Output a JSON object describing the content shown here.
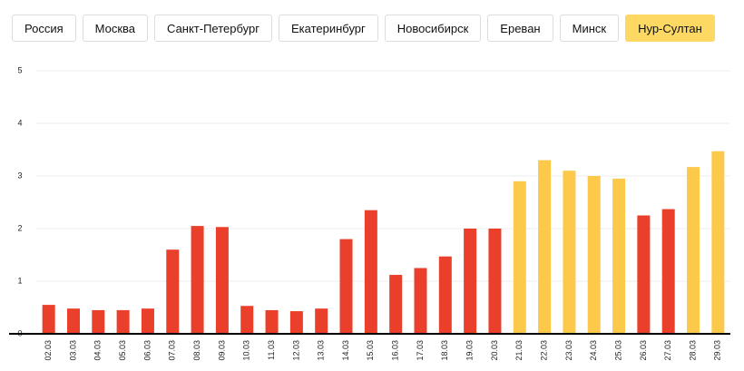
{
  "tabs": [
    "Россия",
    "Москва",
    "Санкт-Петербург",
    "Екатеринбург",
    "Новосибирск",
    "Ереван",
    "Минск",
    "Нур-Султан"
  ],
  "active_tab": 7,
  "chart_data": {
    "type": "bar",
    "categories": [
      "02.03",
      "03.03",
      "04.03",
      "05.03",
      "06.03",
      "07.03",
      "08.03",
      "09.03",
      "10.03",
      "11.03",
      "12.03",
      "13.03",
      "14.03",
      "15.03",
      "16.03",
      "17.03",
      "18.03",
      "19.03",
      "20.03",
      "21.03",
      "22.03",
      "23.03",
      "24.03",
      "25.03",
      "26.03",
      "27.03",
      "28.03",
      "29.03"
    ],
    "values": [
      0.55,
      0.48,
      0.45,
      0.45,
      0.48,
      1.6,
      2.05,
      2.03,
      0.53,
      0.45,
      0.43,
      0.48,
      1.8,
      2.35,
      1.12,
      1.25,
      1.47,
      2.0,
      2.0,
      2.9,
      3.3,
      3.1,
      3.0,
      2.95,
      2.25,
      2.37,
      3.17,
      3.47
    ],
    "colors": [
      "#ea3f2b",
      "#ea3f2b",
      "#ea3f2b",
      "#ea3f2b",
      "#ea3f2b",
      "#ea3f2b",
      "#ea3f2b",
      "#ea3f2b",
      "#ea3f2b",
      "#ea3f2b",
      "#ea3f2b",
      "#ea3f2b",
      "#ea3f2b",
      "#ea3f2b",
      "#ea3f2b",
      "#ea3f2b",
      "#ea3f2b",
      "#ea3f2b",
      "#ea3f2b",
      "#fcc94b",
      "#fcc94b",
      "#fcc94b",
      "#fcc94b",
      "#fcc94b",
      "#ea3f2b",
      "#ea3f2b",
      "#fcc94b",
      "#fcc94b"
    ],
    "ylim": [
      0,
      5
    ],
    "yticks": [
      0,
      1,
      2,
      3,
      4,
      5
    ],
    "grid": true
  }
}
